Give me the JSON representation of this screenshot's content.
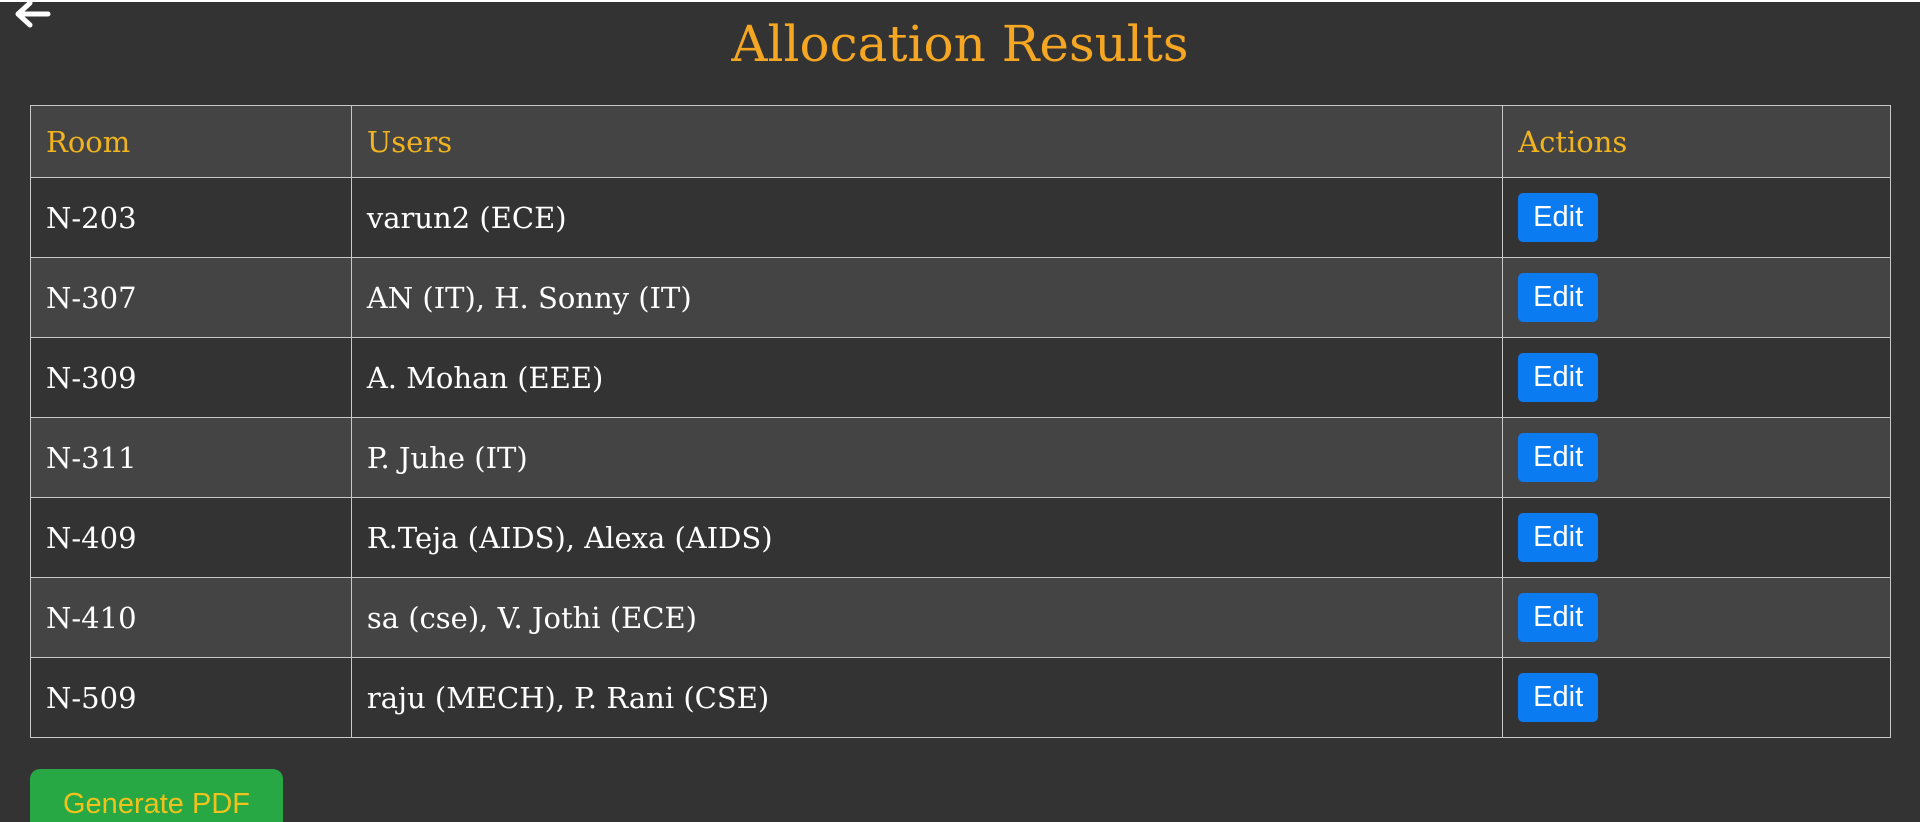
{
  "page": {
    "title": "Allocation Results",
    "back_icon": "arrow-left-icon"
  },
  "table": {
    "headers": {
      "room": "Room",
      "users": "Users",
      "actions": "Actions"
    },
    "rows": [
      {
        "room": "N-203",
        "users": "varun2 (ECE)",
        "action": "Edit"
      },
      {
        "room": "N-307",
        "users": "AN (IT), H. Sonny (IT)",
        "action": "Edit"
      },
      {
        "room": "N-309",
        "users": "A. Mohan (EEE)",
        "action": "Edit"
      },
      {
        "room": "N-311",
        "users": "P. Juhe (IT)",
        "action": "Edit"
      },
      {
        "room": "N-409",
        "users": "R.Teja (AIDS), Alexa (AIDS)",
        "action": "Edit"
      },
      {
        "room": "N-410",
        "users": "sa (cse), V. Jothi (ECE)",
        "action": "Edit"
      },
      {
        "room": "N-509",
        "users": "raju (MECH), P. Rani (CSE)",
        "action": "Edit"
      }
    ]
  },
  "footer": {
    "generate_pdf_label": "Generate PDF"
  },
  "colors": {
    "background": "#333333",
    "title": "#f5a623",
    "header_text": "#f1b41f",
    "edit_button": "#0a7bf0",
    "pdf_button": "#28a745",
    "pdf_button_text": "#f1c21b"
  }
}
